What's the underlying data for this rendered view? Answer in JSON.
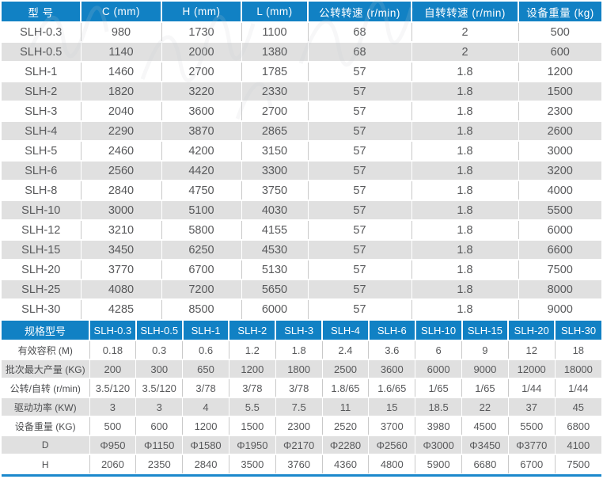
{
  "colors": {
    "header_blue": "#1181c4",
    "accent_line_blue": "#1b88cc",
    "stripe_gray": "#e0e0e0",
    "cell_text": "#58595b"
  },
  "dimensions_table": {
    "headers": [
      "型 号",
      "C (mm)",
      "H (mm)",
      "L (mm)",
      "公转转速 (r/min)",
      "自转转速 (r/min)",
      "设备重量 (kg)"
    ],
    "rows": [
      [
        "SLH-0.3",
        "980",
        "1730",
        "1100",
        "68",
        "2",
        "500"
      ],
      [
        "SLH-0.5",
        "1140",
        "2000",
        "1380",
        "68",
        "2",
        "600"
      ],
      [
        "SLH-1",
        "1460",
        "2700",
        "1785",
        "57",
        "1.8",
        "1200"
      ],
      [
        "SLH-2",
        "1820",
        "3220",
        "2330",
        "57",
        "1.8",
        "1500"
      ],
      [
        "SLH-3",
        "2040",
        "3600",
        "2700",
        "57",
        "1.8",
        "2300"
      ],
      [
        "SLH-4",
        "2290",
        "3870",
        "2865",
        "57",
        "1.8",
        "2600"
      ],
      [
        "SLH-5",
        "2460",
        "4200",
        "3150",
        "57",
        "1.8",
        "3000"
      ],
      [
        "SLH-6",
        "2560",
        "4420",
        "3300",
        "57",
        "1.8",
        "3200"
      ],
      [
        "SLH-8",
        "2840",
        "4750",
        "3750",
        "57",
        "1.8",
        "4000"
      ],
      [
        "SLH-10",
        "3000",
        "5100",
        "4030",
        "57",
        "1.8",
        "5500"
      ],
      [
        "SLH-12",
        "3210",
        "5800",
        "4155",
        "57",
        "1.8",
        "6000"
      ],
      [
        "SLH-15",
        "3450",
        "6250",
        "4530",
        "57",
        "1.8",
        "6600"
      ],
      [
        "SLH-20",
        "3770",
        "6700",
        "5130",
        "57",
        "1.8",
        "7500"
      ],
      [
        "SLH-25",
        "4080",
        "7200",
        "5650",
        "57",
        "1.8",
        "8000"
      ],
      [
        "SLH-30",
        "4285",
        "8500",
        "6000",
        "57",
        "1.8",
        "9000"
      ]
    ]
  },
  "specs_table": {
    "corner_label": "规格型号",
    "model_headers": [
      "SLH-0.3",
      "SLH-0.5",
      "SLH-1",
      "SLH-2",
      "SLH-3",
      "SLH-4",
      "SLH-6",
      "SLH-10",
      "SLH-15",
      "SLH-20",
      "SLH-30"
    ],
    "rows": [
      {
        "label": "有效容积 (M)",
        "values": [
          "0.18",
          "0.3",
          "0.6",
          "1.2",
          "1.8",
          "2.4",
          "3.6",
          "6",
          "9",
          "12",
          "18"
        ]
      },
      {
        "label": "批次最大产量 (KG)",
        "values": [
          "200",
          "300",
          "650",
          "1200",
          "1800",
          "2500",
          "3600",
          "6000",
          "9000",
          "12000",
          "18000"
        ]
      },
      {
        "label": "公转/自转 (r/min)",
        "values": [
          "3.5/120",
          "3.5/120",
          "3/78",
          "3/78",
          "3/78",
          "1.8/65",
          "1.6/65",
          "1/65",
          "1/65",
          "1/44",
          "1/44"
        ]
      },
      {
        "label": "驱动功率 (KW)",
        "values": [
          "3",
          "3",
          "4",
          "5.5",
          "7.5",
          "11",
          "15",
          "18.5",
          "22",
          "37",
          "45"
        ]
      },
      {
        "label": "设备重量 (KG)",
        "values": [
          "500",
          "600",
          "1200",
          "1500",
          "2300",
          "2520",
          "3700",
          "3980",
          "4500",
          "5500",
          "6800"
        ]
      },
      {
        "label": "D",
        "values": [
          "Φ950",
          "Φ1150",
          "Φ1580",
          "Φ1950",
          "Φ2170",
          "Φ2280",
          "Φ2560",
          "Φ3000",
          "Φ3450",
          "Φ3770",
          "4100"
        ]
      },
      {
        "label": "H",
        "values": [
          "2060",
          "2350",
          "2840",
          "3500",
          "3760",
          "4360",
          "4800",
          "5900",
          "6680",
          "6700",
          "7500"
        ]
      }
    ]
  }
}
